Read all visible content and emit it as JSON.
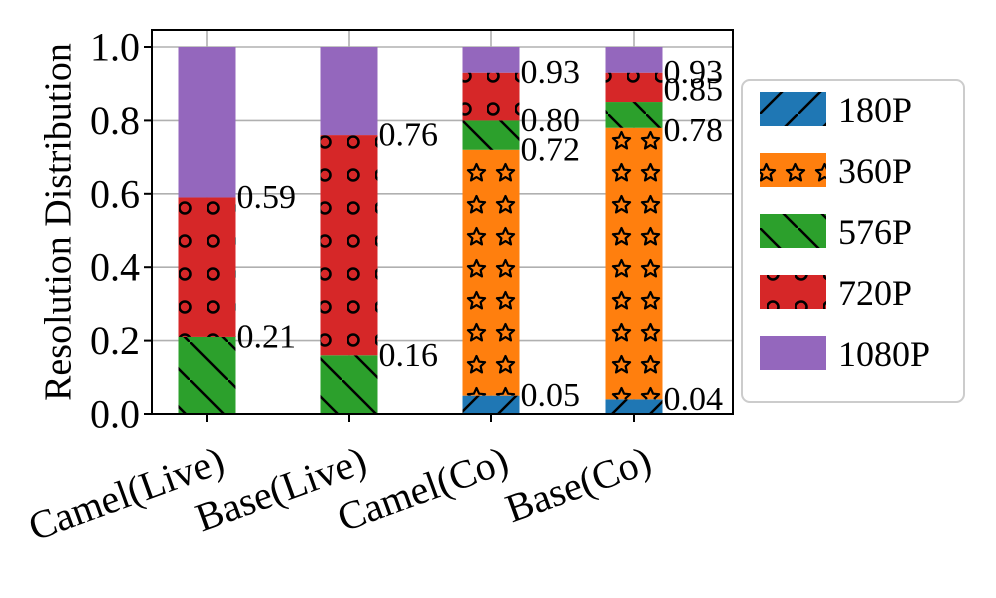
{
  "chart_data": {
    "type": "bar",
    "stacked": true,
    "categories": [
      "Camel(Live)",
      "Base(Live)",
      "Camel(Co)",
      "Base(Co)"
    ],
    "ylabel": "Resolution Distribution",
    "xlabel": "",
    "ylim": [
      0,
      1.0
    ],
    "yticks": [
      "0.0",
      "0.2",
      "0.4",
      "0.6",
      "0.8",
      "1.0"
    ],
    "grid": true,
    "legend_position": "right",
    "series": [
      {
        "name": "180P",
        "color": "#1f77b4",
        "pattern": "slash",
        "values": [
          0.0,
          0.0,
          0.05,
          0.04
        ]
      },
      {
        "name": "360P",
        "color": "#ff7f0e",
        "pattern": "star",
        "values": [
          0.0,
          0.0,
          0.67,
          0.74
        ]
      },
      {
        "name": "576P",
        "color": "#2ca02c",
        "pattern": "backslash",
        "values": [
          0.21,
          0.16,
          0.08,
          0.07
        ]
      },
      {
        "name": "720P",
        "color": "#d62728",
        "pattern": "circle",
        "values": [
          0.38,
          0.6,
          0.13,
          0.08
        ]
      },
      {
        "name": "1080P",
        "color": "#9467bd",
        "pattern": "none",
        "values": [
          0.41,
          0.24,
          0.07,
          0.07
        ]
      }
    ],
    "annotations": [
      {
        "category": "Camel(Live)",
        "value": 0.59,
        "text": "0.59"
      },
      {
        "category": "Camel(Live)",
        "value": 0.21,
        "text": "0.21"
      },
      {
        "category": "Base(Live)",
        "value": 0.76,
        "text": "0.76"
      },
      {
        "category": "Base(Live)",
        "value": 0.16,
        "text": "0.16"
      },
      {
        "category": "Camel(Co)",
        "value": 0.93,
        "text": "0.93"
      },
      {
        "category": "Camel(Co)",
        "value": 0.8,
        "text": "0.80"
      },
      {
        "category": "Camel(Co)",
        "value": 0.72,
        "text": "0.72"
      },
      {
        "category": "Camel(Co)",
        "value": 0.05,
        "text": "0.05"
      },
      {
        "category": "Base(Co)",
        "value": 0.93,
        "text": "0.93"
      },
      {
        "category": "Base(Co)",
        "value": 0.85,
        "text": "0.85"
      },
      {
        "category": "Base(Co)",
        "value": 0.78,
        "text": "0.78"
      },
      {
        "category": "Base(Co)",
        "value": 0.04,
        "text": "0.04"
      }
    ]
  }
}
